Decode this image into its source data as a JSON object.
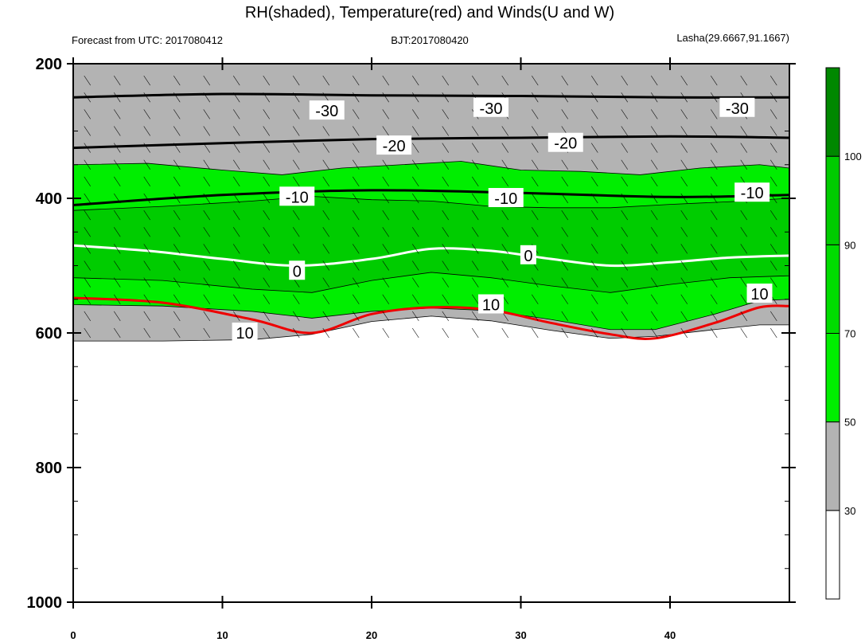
{
  "chart_data": {
    "type": "contour",
    "title": "RH(shaded), Temperature(red) and Winds(U and W)",
    "subtitle_left": "Forecast from UTC: 2017080412",
    "subtitle_center": "BJT:2017080420",
    "subtitle_right": "Lasha(29.6667,91.1667)",
    "xlim": [
      0,
      48
    ],
    "x_ticks": [
      "0",
      "10",
      "20",
      "30",
      "40"
    ],
    "ylim": [
      1000,
      200
    ],
    "y_ticks": [
      "200",
      "400",
      "600",
      "800",
      "1000"
    ],
    "colorbar": {
      "levels": [
        "30",
        "50",
        "70",
        "90",
        "100"
      ],
      "colors": [
        "#ffffff",
        "#b3b3b3",
        "#00ee00",
        "#00dd00",
        "#00cc00",
        "#008800"
      ]
    },
    "shading_bands": [
      {
        "name": "grey (30-50)",
        "color": "#b3b3b3",
        "top": [
          [
            0,
            200
          ],
          [
            48,
            200
          ]
        ],
        "bottom": [
          [
            0,
            612
          ],
          [
            6,
            612
          ],
          [
            12,
            610
          ],
          [
            16,
            602
          ],
          [
            20,
            583
          ],
          [
            24,
            575
          ],
          [
            28,
            582
          ],
          [
            32,
            596
          ],
          [
            36,
            608
          ],
          [
            39,
            605
          ],
          [
            43,
            595
          ],
          [
            46,
            588
          ],
          [
            48,
            588
          ]
        ]
      },
      {
        "name": "light green (50-70)",
        "color": "#00ee00",
        "top": [
          [
            0,
            350
          ],
          [
            5,
            348
          ],
          [
            10,
            358
          ],
          [
            14,
            365
          ],
          [
            18,
            355
          ],
          [
            22,
            350
          ],
          [
            26,
            345
          ],
          [
            30,
            358
          ],
          [
            34,
            360
          ],
          [
            38,
            365
          ],
          [
            42,
            355
          ],
          [
            46,
            350
          ],
          [
            48,
            355
          ]
        ],
        "bottom": [
          [
            0,
            558
          ],
          [
            6,
            560
          ],
          [
            12,
            568
          ],
          [
            16,
            578
          ],
          [
            20,
            568
          ],
          [
            24,
            563
          ],
          [
            28,
            567
          ],
          [
            32,
            580
          ],
          [
            36,
            595
          ],
          [
            39,
            595
          ],
          [
            43,
            572
          ],
          [
            46,
            552
          ],
          [
            48,
            550
          ]
        ]
      },
      {
        "name": "green (70-90)",
        "color": "#00cc00",
        "top": [
          [
            0,
            418
          ],
          [
            6,
            412
          ],
          [
            12,
            404
          ],
          [
            16,
            397
          ],
          [
            20,
            402
          ],
          [
            24,
            404
          ],
          [
            28,
            412
          ],
          [
            32,
            414
          ],
          [
            36,
            414
          ],
          [
            40,
            409
          ],
          [
            44,
            405
          ],
          [
            48,
            400
          ]
        ],
        "bottom": [
          [
            0,
            518
          ],
          [
            6,
            522
          ],
          [
            12,
            535
          ],
          [
            16,
            540
          ],
          [
            20,
            522
          ],
          [
            24,
            510
          ],
          [
            28,
            518
          ],
          [
            32,
            530
          ],
          [
            36,
            540
          ],
          [
            40,
            528
          ],
          [
            44,
            518
          ],
          [
            48,
            515
          ]
        ]
      }
    ],
    "white_gaps": [
      {
        "x_range": [
          14,
          43
        ],
        "y_range": [
          612,
          650
        ]
      }
    ],
    "temperature_contours": [
      {
        "value": -30,
        "points": [
          [
            0,
            250
          ],
          [
            10,
            245
          ],
          [
            20,
            247
          ],
          [
            30,
            248
          ],
          [
            40,
            250
          ],
          [
            48,
            250
          ]
        ]
      },
      {
        "value": -20,
        "points": [
          [
            0,
            325
          ],
          [
            10,
            318
          ],
          [
            20,
            312
          ],
          [
            30,
            310
          ],
          [
            40,
            308
          ],
          [
            48,
            310
          ]
        ]
      },
      {
        "value": -10,
        "points": [
          [
            0,
            410
          ],
          [
            10,
            395
          ],
          [
            20,
            388
          ],
          [
            30,
            392
          ],
          [
            40,
            398
          ],
          [
            48,
            395
          ]
        ]
      },
      {
        "value": 0,
        "points": [
          [
            0,
            470
          ],
          [
            5,
            478
          ],
          [
            10,
            490
          ],
          [
            15,
            500
          ],
          [
            20,
            490
          ],
          [
            24,
            475
          ],
          [
            28,
            478
          ],
          [
            32,
            490
          ],
          [
            36,
            500
          ],
          [
            40,
            495
          ],
          [
            44,
            488
          ],
          [
            48,
            485
          ]
        ]
      },
      {
        "value": 10,
        "points": [
          [
            0,
            548
          ],
          [
            6,
            555
          ],
          [
            12,
            580
          ],
          [
            16,
            600
          ],
          [
            20,
            572
          ],
          [
            24,
            562
          ],
          [
            28,
            566
          ],
          [
            32,
            585
          ],
          [
            36,
            602
          ],
          [
            39,
            608
          ],
          [
            43,
            585
          ],
          [
            46,
            562
          ],
          [
            48,
            560
          ]
        ]
      }
    ],
    "contour_labels": [
      {
        "text": "-30",
        "x": 17,
        "y": 270
      },
      {
        "text": "-30",
        "x": 28,
        "y": 266
      },
      {
        "text": "-30",
        "x": 44.5,
        "y": 266
      },
      {
        "text": "-20",
        "x": 21.5,
        "y": 322
      },
      {
        "text": "-20",
        "x": 33,
        "y": 318
      },
      {
        "text": "-10",
        "x": 15,
        "y": 398
      },
      {
        "text": "-10",
        "x": 29,
        "y": 400
      },
      {
        "text": "-10",
        "x": 45.5,
        "y": 392
      },
      {
        "text": "0",
        "x": 15,
        "y": 508
      },
      {
        "text": "0",
        "x": 30.5,
        "y": 485
      },
      {
        "text": "10",
        "x": 11.5,
        "y": 600
      },
      {
        "text": "10",
        "x": 28,
        "y": 558
      },
      {
        "text": "10",
        "x": 46,
        "y": 542
      }
    ]
  }
}
